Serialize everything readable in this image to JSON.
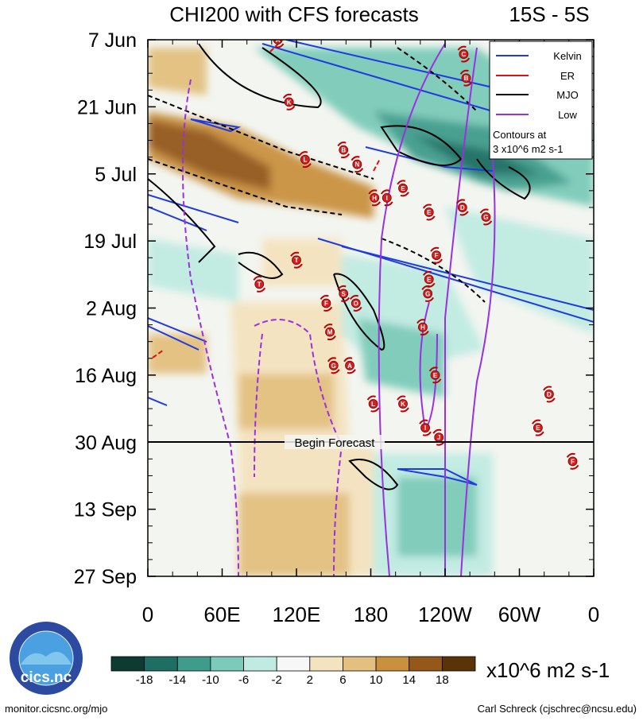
{
  "title": "CHI200 with CFS forecasts",
  "region": "15S - 5S",
  "chart_data": {
    "type": "heatmap",
    "title": "CHI200 with CFS forecasts",
    "subtitle": "15S - 5S",
    "x_ticks": [
      "0",
      "60E",
      "120E",
      "180",
      "120W",
      "60W",
      "0"
    ],
    "x_range": [
      0,
      360
    ],
    "y_ticks": [
      "7 Jun",
      "21 Jun",
      "5 Jul",
      "19 Jul",
      "2 Aug",
      "16 Aug",
      "30 Aug",
      "13 Sep",
      "27 Sep"
    ],
    "y_range_days": [
      0,
      112
    ],
    "forecast_start": "30 Aug",
    "forecast_label": "Begin Forecast",
    "colorbar": {
      "ticks": [
        "-18",
        "-14",
        "-10",
        "-6",
        "-2",
        "2",
        "6",
        "10",
        "14",
        "18"
      ],
      "units": "x10^6 m2 s-1",
      "colors": [
        "#0d3b32",
        "#1f6e63",
        "#3f9c8c",
        "#7ccab9",
        "#c0ebe2",
        "#f7f7f7",
        "#f4e3bf",
        "#e3c07f",
        "#c9913f",
        "#94591a",
        "#5b3309"
      ]
    },
    "legend": {
      "position": "top-right",
      "entries": [
        {
          "name": "Kelvin",
          "color": "#1f3ae0"
        },
        {
          "name": "ER",
          "color": "#e01010"
        },
        {
          "name": "MJO",
          "color": "#000000"
        },
        {
          "name": "Low",
          "color": "#9b30e0"
        }
      ],
      "note_line1": "Contours at",
      "note_line2": "3 x10^6 m2 s-1"
    },
    "storms": [
      {
        "letter": "A",
        "lon": 105,
        "day": 0
      },
      {
        "letter": "C",
        "lon": 255,
        "day": 3
      },
      {
        "letter": "B",
        "lon": 257,
        "day": 8
      },
      {
        "letter": "K",
        "lon": 114,
        "day": 13
      },
      {
        "letter": "B",
        "lon": 158,
        "day": 23
      },
      {
        "letter": "L",
        "lon": 127,
        "day": 25
      },
      {
        "letter": "N",
        "lon": 169,
        "day": 26
      },
      {
        "letter": "E",
        "lon": 206,
        "day": 31
      },
      {
        "letter": "H",
        "lon": 183,
        "day": 33
      },
      {
        "letter": "I",
        "lon": 193,
        "day": 33
      },
      {
        "letter": "D",
        "lon": 254,
        "day": 35
      },
      {
        "letter": "E",
        "lon": 227,
        "day": 36
      },
      {
        "letter": "G",
        "lon": 273,
        "day": 37
      },
      {
        "letter": "F",
        "lon": 233,
        "day": 45
      },
      {
        "letter": "T",
        "lon": 120,
        "day": 46
      },
      {
        "letter": "E",
        "lon": 227,
        "day": 50
      },
      {
        "letter": "T",
        "lon": 90,
        "day": 51
      },
      {
        "letter": "S",
        "lon": 158,
        "day": 53
      },
      {
        "letter": "G",
        "lon": 226,
        "day": 53
      },
      {
        "letter": "O",
        "lon": 168,
        "day": 55
      },
      {
        "letter": "F",
        "lon": 144,
        "day": 55
      },
      {
        "letter": "H",
        "lon": 222,
        "day": 60
      },
      {
        "letter": "M",
        "lon": 147,
        "day": 61
      },
      {
        "letter": "G",
        "lon": 150,
        "day": 68
      },
      {
        "letter": "A",
        "lon": 163,
        "day": 68
      },
      {
        "letter": "E",
        "lon": 232,
        "day": 70
      },
      {
        "letter": "D",
        "lon": 324,
        "day": 74
      },
      {
        "letter": "L",
        "lon": 182,
        "day": 76
      },
      {
        "letter": "K",
        "lon": 206,
        "day": 76
      },
      {
        "letter": "I",
        "lon": 224,
        "day": 81
      },
      {
        "letter": "E",
        "lon": 315,
        "day": 81
      },
      {
        "letter": "J",
        "lon": 235,
        "day": 83
      },
      {
        "letter": "F",
        "lon": 343,
        "day": 88
      }
    ]
  },
  "footer": {
    "left": "monitor.cicsnc.org/mjo",
    "right": "Carl Schreck (cjschrec@ncsu.edu)",
    "logo_text": "cics.nc",
    "logo_ring": "Cooperative Institute for Climate and Satellites"
  }
}
